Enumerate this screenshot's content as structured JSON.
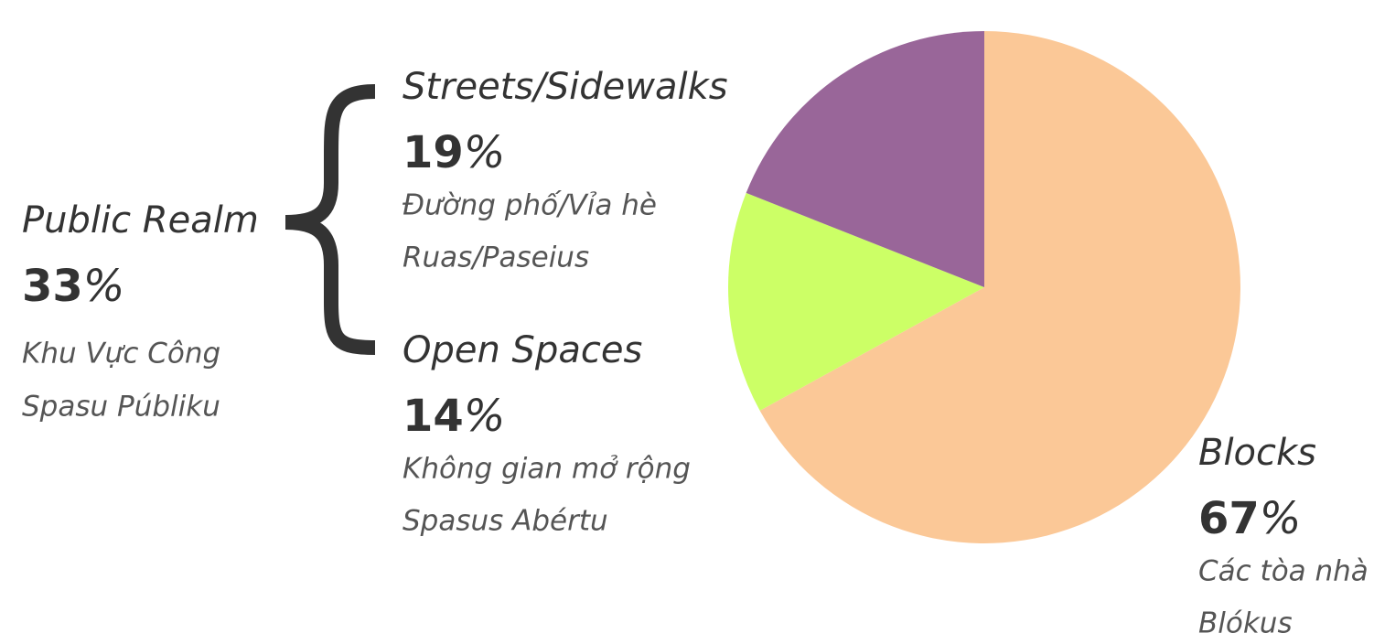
{
  "chart_data": {
    "type": "pie",
    "categories": [
      "Blocks",
      "Open Spaces",
      "Streets/Sidewalks"
    ],
    "values": [
      67,
      14,
      19
    ],
    "value_labels": [
      "67%",
      "14%",
      "19%"
    ],
    "colors": [
      "#fbc897",
      "#ccff66",
      "#996699"
    ],
    "translations": [
      [
        "Các tòa nhà",
        "Blókus"
      ],
      [
        "Không gian mở rộng",
        "Spasus Abértu"
      ],
      [
        "Đường phố/Vỉa hè",
        "Ruas/Paseius"
      ]
    ],
    "group": {
      "name": "Public Realm",
      "value": 33,
      "value_label": "33%",
      "translations": [
        "Khu Vực Công",
        "Spasu Públiku"
      ]
    }
  }
}
